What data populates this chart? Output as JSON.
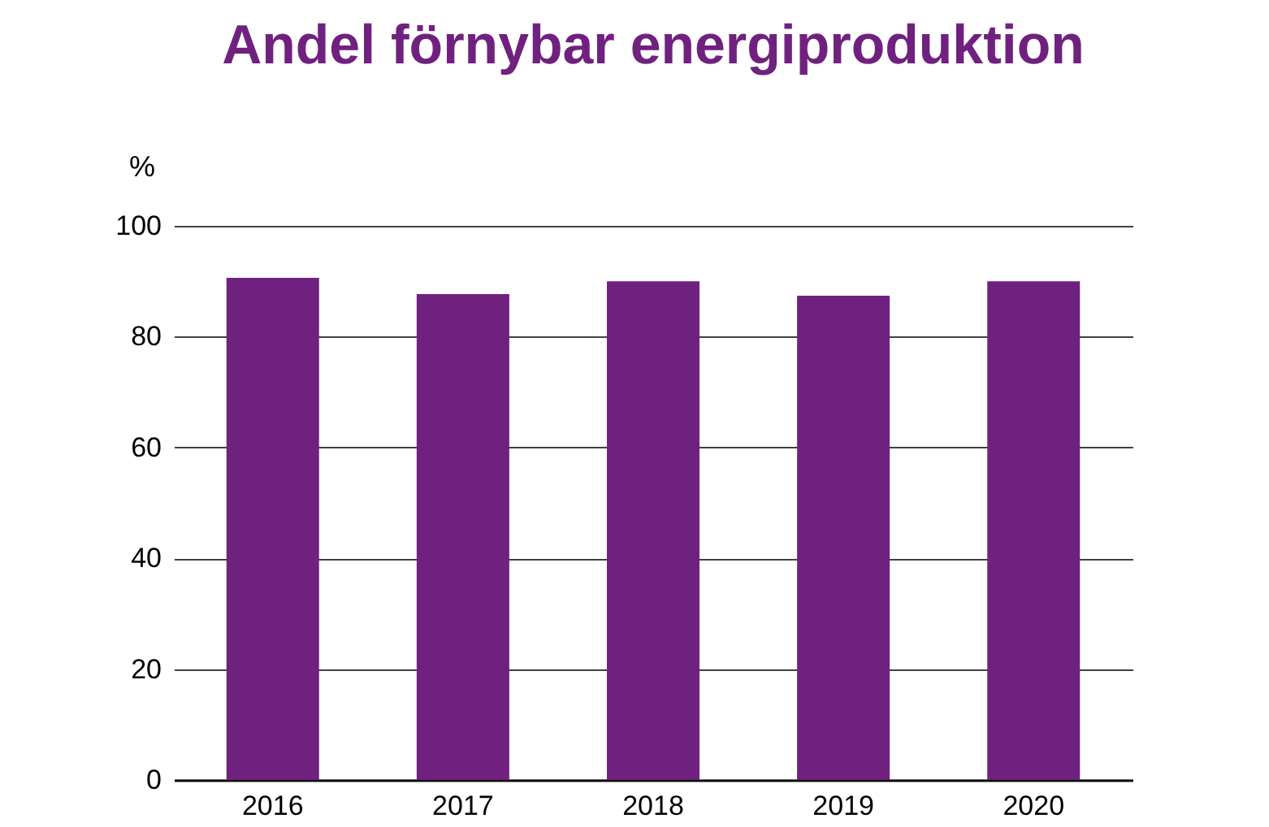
{
  "chart_data": {
    "type": "bar",
    "title": "Andel förnybar energiproduktion",
    "ylabel": "%",
    "categories": [
      "2016",
      "2017",
      "2018",
      "2019",
      "2020"
    ],
    "values": [
      90.6,
      87.7,
      90.0,
      87.4,
      90.0
    ],
    "color": "#70217f",
    "ylim": [
      0,
      100
    ],
    "yticks": [
      0,
      20,
      40,
      60,
      80,
      100
    ],
    "grid": "y"
  }
}
